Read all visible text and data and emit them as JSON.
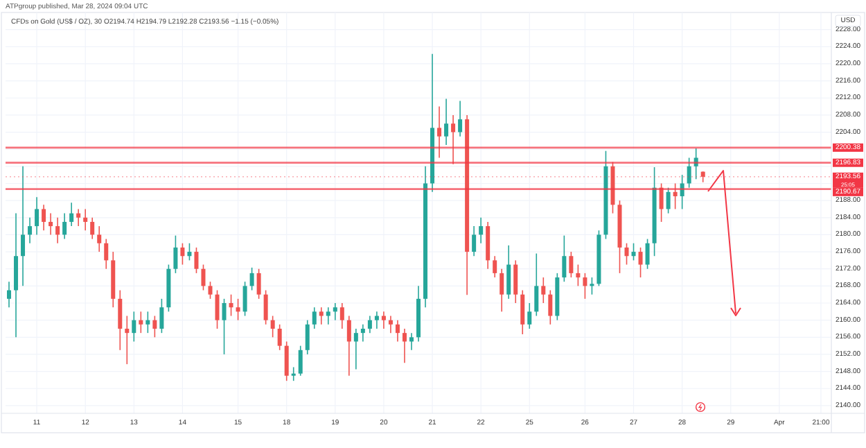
{
  "chart_data": {
    "type": "candlestick",
    "title": "ATPgroup published, Mar 28, 2024 09:04 UTC",
    "subtitle": "CFDs on Gold (US$ / OZ), 30  O2194.74 H2194.79 L2192.28 C2193.56 −1.15 (−0.05%)",
    "ylabel": "USD",
    "categories": [
      null,
      null,
      null,
      null,
      "11",
      null,
      null,
      null,
      null,
      null,
      null,
      "12",
      null,
      null,
      null,
      null,
      null,
      null,
      "13",
      null,
      null,
      null,
      null,
      null,
      null,
      "14",
      null,
      null,
      null,
      null,
      null,
      null,
      null,
      "15",
      null,
      null,
      null,
      null,
      null,
      null,
      "18",
      null,
      null,
      null,
      null,
      null,
      null,
      "19",
      null,
      null,
      null,
      null,
      null,
      null,
      "20",
      null,
      null,
      null,
      null,
      null,
      null,
      "21",
      null,
      null,
      null,
      null,
      null,
      null,
      "22",
      null,
      null,
      null,
      null,
      null,
      null,
      "25",
      null,
      null,
      null,
      null,
      null,
      null,
      null,
      "26",
      null,
      null,
      null,
      null,
      null,
      null,
      "27",
      null,
      null,
      null,
      null,
      null,
      null,
      "28",
      null,
      null,
      null,
      null,
      null,
      null,
      "29",
      null,
      null,
      null,
      null,
      null,
      null,
      "Apr",
      null,
      null,
      null,
      null,
      null,
      "21:00",
      null
    ],
    "ohlc": [
      [
        2165,
        2169,
        2163,
        2167
      ],
      [
        2167,
        2185,
        2156,
        2175
      ],
      [
        2175,
        2196,
        2168,
        2180
      ],
      [
        2180,
        2184,
        2178,
        2182
      ],
      [
        2182,
        2188.8,
        2180,
        2186
      ],
      [
        2186,
        2187,
        2181,
        2183
      ],
      [
        2183,
        2185,
        2180,
        2182
      ],
      [
        2182,
        2184,
        2178,
        2180
      ],
      [
        2180,
        2185,
        2179,
        2183
      ],
      [
        2183,
        2187.5,
        2182,
        2185
      ],
      [
        2185,
        2186,
        2182,
        2184
      ],
      [
        2184,
        2186,
        2181,
        2183
      ],
      [
        2183,
        2184,
        2179,
        2180
      ],
      [
        2180,
        2182,
        2176,
        2178
      ],
      [
        2178,
        2179,
        2172,
        2174
      ],
      [
        2174,
        2176,
        2163,
        2165
      ],
      [
        2165,
        2167,
        2153,
        2158
      ],
      [
        2158,
        2161,
        2149.7,
        2157
      ],
      [
        2157,
        2162,
        2155,
        2160
      ],
      [
        2160,
        2162,
        2157,
        2159
      ],
      [
        2159,
        2162,
        2157,
        2160
      ],
      [
        2160,
        2161,
        2156,
        2158
      ],
      [
        2158,
        2165,
        2157,
        2163
      ],
      [
        2163,
        2173,
        2162,
        2172
      ],
      [
        2172,
        2179.8,
        2171,
        2177
      ],
      [
        2177,
        2178,
        2173,
        2175
      ],
      [
        2175,
        2178,
        2174,
        2176
      ],
      [
        2176,
        2177,
        2171,
        2172
      ],
      [
        2172,
        2173,
        2167,
        2168
      ],
      [
        2168,
        2169,
        2165,
        2166
      ],
      [
        2166,
        2167,
        2158,
        2160
      ],
      [
        2160,
        2165,
        2152,
        2164
      ],
      [
        2164,
        2166,
        2161,
        2163
      ],
      [
        2163,
        2165,
        2160,
        2162
      ],
      [
        2162,
        2169,
        2161,
        2168
      ],
      [
        2168,
        2172.3,
        2167,
        2171
      ],
      [
        2171,
        2172,
        2165,
        2166
      ],
      [
        2166,
        2167,
        2159,
        2160
      ],
      [
        2160,
        2161,
        2156,
        2158
      ],
      [
        2158,
        2159,
        2153,
        2154
      ],
      [
        2154,
        2155,
        2145.8,
        2147
      ],
      [
        2147,
        2149,
        2145.8,
        2147.5
      ],
      [
        2147.5,
        2154,
        2147,
        2153
      ],
      [
        2153,
        2160,
        2152,
        2159
      ],
      [
        2159,
        2163,
        2158,
        2162
      ],
      [
        2162,
        2163,
        2159,
        2161
      ],
      [
        2161,
        2163,
        2159,
        2162
      ],
      [
        2162,
        2164,
        2160,
        2163
      ],
      [
        2163,
        2164,
        2158,
        2160
      ],
      [
        2160,
        2161,
        2147,
        2155
      ],
      [
        2155,
        2158,
        2148.5,
        2157
      ],
      [
        2157,
        2159,
        2155,
        2158
      ],
      [
        2158,
        2161,
        2157,
        2160
      ],
      [
        2160,
        2162,
        2158,
        2161
      ],
      [
        2161,
        2162,
        2158,
        2160
      ],
      [
        2160,
        2161,
        2157,
        2159
      ],
      [
        2159,
        2160,
        2155,
        2157
      ],
      [
        2157,
        2158,
        2150,
        2155
      ],
      [
        2155,
        2157,
        2153,
        2156
      ],
      [
        2156,
        2168,
        2155,
        2165
      ],
      [
        2165,
        2196,
        2163,
        2192
      ],
      [
        2192,
        2222.3,
        2190,
        2205
      ],
      [
        2205,
        2210,
        2198,
        2203
      ],
      [
        2203,
        2211.8,
        2201,
        2206
      ],
      [
        2206,
        2208,
        2196.5,
        2204
      ],
      [
        2204,
        2211.3,
        2203,
        2207
      ],
      [
        2207,
        2208,
        2165.9,
        2176
      ],
      [
        2176,
        2182,
        2175,
        2180
      ],
      [
        2180,
        2184,
        2178,
        2182
      ],
      [
        2182,
        2183,
        2172,
        2174
      ],
      [
        2174,
        2175,
        2170,
        2171
      ],
      [
        2171,
        2172,
        2162,
        2166
      ],
      [
        2166,
        2177.5,
        2165,
        2173
      ],
      [
        2173,
        2174,
        2164,
        2166
      ],
      [
        2166,
        2167,
        2156.7,
        2159
      ],
      [
        2159,
        2164,
        2158,
        2162
      ],
      [
        2162,
        2175.6,
        2161,
        2168
      ],
      [
        2168,
        2170,
        2164,
        2166
      ],
      [
        2166,
        2167,
        2159,
        2161
      ],
      [
        2161,
        2171,
        2160,
        2170
      ],
      [
        2170,
        2179.8,
        2169,
        2175
      ],
      [
        2175,
        2176,
        2170,
        2171
      ],
      [
        2171,
        2173,
        2168,
        2170
      ],
      [
        2170,
        2171,
        2165,
        2168
      ],
      [
        2168,
        2170,
        2166,
        2168.5
      ],
      [
        2168.5,
        2181,
        2168,
        2180
      ],
      [
        2180,
        2199.6,
        2179,
        2196
      ],
      [
        2196,
        2197,
        2185,
        2187
      ],
      [
        2187,
        2188,
        2171,
        2177
      ],
      [
        2177,
        2178,
        2173,
        2175
      ],
      [
        2175,
        2178,
        2174,
        2176
      ],
      [
        2176,
        2177,
        2170,
        2173
      ],
      [
        2173,
        2179,
        2172,
        2178
      ],
      [
        2178,
        2195.8,
        2175,
        2191
      ],
      [
        2191,
        2192,
        2183,
        2186
      ],
      [
        2186,
        2191,
        2185,
        2190
      ],
      [
        2190,
        2192,
        2186,
        2189
      ],
      [
        2189,
        2194,
        2186,
        2192
      ],
      [
        2192,
        2198,
        2191,
        2196
      ],
      [
        2196,
        2200.2,
        2193,
        2198
      ],
      [
        2194.74,
        2194.79,
        2192.28,
        2193.56
      ],
      null,
      null,
      null,
      null,
      null,
      null,
      null,
      null,
      null,
      null,
      null,
      null,
      null,
      null,
      null,
      null,
      null,
      null
    ],
    "colors": [
      "#26a69a",
      "#26a69a",
      "#26a69a",
      "#26a69a",
      "#26a69a",
      "#ef5350",
      "#ef5350",
      "#ef5350",
      "#26a69a",
      "#26a69a",
      "#ef5350",
      "#ef5350",
      "#ef5350",
      "#ef5350",
      "#ef5350",
      "#ef5350",
      "#ef5350",
      "#ef5350",
      "#26a69a",
      "#ef5350",
      "#26a69a",
      "#ef5350",
      "#26a69a",
      "#26a69a",
      "#26a69a",
      "#ef5350",
      "#26a69a",
      "#ef5350",
      "#ef5350",
      "#ef5350",
      "#ef5350",
      "#26a69a",
      "#ef5350",
      "#ef5350",
      "#26a69a",
      "#26a69a",
      "#ef5350",
      "#ef5350",
      "#ef5350",
      "#ef5350",
      "#ef5350",
      "#26a69a",
      "#26a69a",
      "#26a69a",
      "#26a69a",
      "#ef5350",
      "#26a69a",
      "#26a69a",
      "#ef5350",
      "#ef5350",
      "#26a69a",
      "#26a69a",
      "#26a69a",
      "#26a69a",
      "#ef5350",
      "#ef5350",
      "#ef5350",
      "#ef5350",
      "#26a69a",
      "#26a69a",
      "#26a69a",
      "#26a69a",
      "#ef5350",
      "#26a69a",
      "#ef5350",
      "#26a69a",
      "#ef5350",
      "#26a69a",
      "#26a69a",
      "#ef5350",
      "#ef5350",
      "#ef5350",
      "#26a69a",
      "#ef5350",
      "#ef5350",
      "#26a69a",
      "#26a69a",
      "#ef5350",
      "#ef5350",
      "#26a69a",
      "#26a69a",
      "#ef5350",
      "#ef5350",
      "#ef5350",
      "#26a69a",
      "#26a69a",
      "#26a69a",
      "#ef5350",
      "#ef5350",
      "#ef5350",
      "#26a69a",
      "#ef5350",
      "#26a69a",
      "#26a69a",
      "#ef5350",
      "#26a69a",
      "#ef5350",
      "#26a69a",
      "#26a69a",
      "#26a69a",
      "#ef5350",
      null,
      null,
      null,
      null,
      null,
      null,
      null,
      null,
      null,
      null,
      null,
      null,
      null,
      null,
      null,
      null,
      null,
      null
    ],
    "ylim": [
      2138.2,
      2232
    ],
    "yticks": [
      {
        "value": 2140,
        "label": "2140.00"
      },
      {
        "value": 2144,
        "label": "2144.00"
      },
      {
        "value": 2148,
        "label": "2148.00"
      },
      {
        "value": 2152,
        "label": "2152.00"
      },
      {
        "value": 2156,
        "label": "2156.00"
      },
      {
        "value": 2160,
        "label": "2160.00"
      },
      {
        "value": 2164,
        "label": "2164.00"
      },
      {
        "value": 2168,
        "label": "2168.00"
      },
      {
        "value": 2172,
        "label": "2172.00"
      },
      {
        "value": 2176,
        "label": "2176.00"
      },
      {
        "value": 2180,
        "label": "2180.00"
      },
      {
        "value": 2184,
        "label": "2184.00"
      },
      {
        "value": 2188,
        "label": "2188.00"
      },
      {
        "value": 2192,
        "label": null
      },
      {
        "value": 2196,
        "label": null
      },
      {
        "value": 2200,
        "label": null
      },
      {
        "value": 2204,
        "label": "2204.00"
      },
      {
        "value": 2208,
        "label": "2208.00"
      },
      {
        "value": 2212,
        "label": "2212.00"
      },
      {
        "value": 2216,
        "label": "2216.00"
      },
      {
        "value": 2220,
        "label": "2220.00"
      },
      {
        "value": 2224,
        "label": "2224.00"
      },
      {
        "value": 2228,
        "label": "2228.00"
      }
    ],
    "grid": true,
    "ref_lines": [
      {
        "axis": "y",
        "value": 2200.38,
        "label": "2200.38",
        "color": "#f23645"
      },
      {
        "axis": "y",
        "value": 2196.83,
        "label": "2196.83",
        "color": "#f23645"
      },
      {
        "axis": "y",
        "value": 2193.56,
        "label": "2193.56\n25:05",
        "color": "#f23645",
        "line_style": "dotted"
      },
      {
        "axis": "y",
        "value": 2190.67,
        "label": "2190.67",
        "color": "#f23645"
      }
    ]
  }
}
